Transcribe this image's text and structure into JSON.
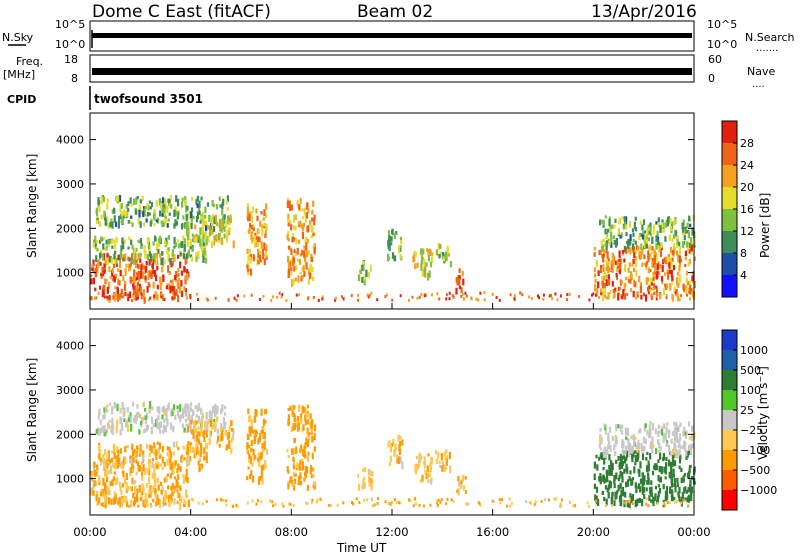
{
  "header": {
    "radar": "Dome C East (fitACF)",
    "beam": "Beam 02",
    "date": "13/Apr/2016"
  },
  "panels": {
    "nsky": {
      "label": "N.Sky",
      "ticks": [
        "10^5",
        "10^0"
      ]
    },
    "nsearch": {
      "label": "N.Search",
      "ticks": [
        "10^5",
        "10^0"
      ],
      "dots": "......."
    },
    "freq": {
      "label_line1": "Freq.",
      "label_line2": "[MHz]",
      "ticks": [
        "18",
        "8"
      ]
    },
    "nave": {
      "label": "Nave",
      "ticks": [
        "60",
        "0"
      ],
      "dots": "...."
    },
    "cpid": {
      "label": "CPID",
      "value": "twofsound 3501"
    }
  },
  "colors": {
    "power": [
      "#1010ff",
      "#1e4fa8",
      "#3d8c5a",
      "#7fc040",
      "#e6dc2a",
      "#f6a020",
      "#f06418",
      "#e02010"
    ],
    "velocity": [
      "#ff0000",
      "#ff5a00",
      "#ff9a00",
      "#ffc850",
      "#c8c8c8",
      "#50c828",
      "#2e7d32",
      "#1f5fa8",
      "#1a3cc8"
    ]
  },
  "chart_data": [
    {
      "type": "heatmap",
      "quantity": "Power",
      "ylabel": "Slant Range [km]",
      "yticks": [
        1000,
        2000,
        3000,
        4000
      ],
      "ylim": [
        180,
        4600
      ],
      "xlim": [
        0,
        24
      ],
      "colorbar": {
        "label": "Power [dB]",
        "ticks": [
          "4",
          "8",
          "12",
          "16",
          "20",
          "24",
          "28"
        ],
        "range": [
          0,
          32
        ]
      },
      "regions": [
        {
          "t0": 0.0,
          "t1": 3.9,
          "r0": 450,
          "r1": 1450,
          "v": 26
        },
        {
          "t0": 0.1,
          "t1": 4.6,
          "r0": 1300,
          "r1": 1850,
          "v": 14
        },
        {
          "t0": 0.2,
          "t1": 5.5,
          "r0": 2100,
          "r1": 2750,
          "v": 13
        },
        {
          "t0": 3.8,
          "t1": 5.7,
          "r0": 1700,
          "r1": 2350,
          "v": 17
        },
        {
          "t0": 6.2,
          "t1": 7.0,
          "r0": 1000,
          "r1": 2600,
          "v": 22
        },
        {
          "t0": 7.8,
          "t1": 8.9,
          "r0": 850,
          "r1": 2700,
          "v": 22
        },
        {
          "t0": 10.6,
          "t1": 11.2,
          "r0": 850,
          "r1": 1300,
          "v": 15
        },
        {
          "t0": 11.8,
          "t1": 12.4,
          "r0": 1350,
          "r1": 2000,
          "v": 14
        },
        {
          "t0": 12.8,
          "t1": 13.6,
          "r0": 950,
          "r1": 1600,
          "v": 18
        },
        {
          "t0": 13.7,
          "t1": 14.3,
          "r0": 1200,
          "r1": 1700,
          "v": 15
        },
        {
          "t0": 14.5,
          "t1": 14.9,
          "r0": 650,
          "r1": 1100,
          "v": 24
        },
        {
          "t0": 20.0,
          "t1": 24.0,
          "r0": 500,
          "r1": 1650,
          "v": 24
        },
        {
          "t0": 20.2,
          "t1": 24.0,
          "r0": 1600,
          "r1": 2300,
          "v": 13
        }
      ]
    },
    {
      "type": "heatmap",
      "quantity": "Velocity",
      "ylabel": "Slant Range [km]",
      "yticks": [
        1000,
        2000,
        3000,
        4000
      ],
      "ylim": [
        180,
        4600
      ],
      "xlim": [
        0,
        24
      ],
      "xticks": [
        "00:00",
        "04:00",
        "08:00",
        "12:00",
        "16:00",
        "20:00",
        "00:00"
      ],
      "xlabel": "Time UT",
      "colorbar": {
        "label": "Velocity [m s^-1]",
        "ticks": [
          "-1000",
          "-500",
          "-100",
          "-25",
          "25",
          "100",
          "500",
          "1000"
        ]
      },
      "regions": [
        {
          "t0": 0.0,
          "t1": 3.9,
          "r0": 450,
          "r1": 1450,
          "v": -100
        },
        {
          "t0": 0.1,
          "t1": 4.6,
          "r0": 1300,
          "r1": 1850,
          "v": -100
        },
        {
          "t0": 0.2,
          "t1": 5.5,
          "r0": 2100,
          "r1": 2750,
          "v": 0
        },
        {
          "t0": 3.8,
          "t1": 5.7,
          "r0": 1700,
          "r1": 2350,
          "v": -80
        },
        {
          "t0": 6.2,
          "t1": 7.0,
          "r0": 1000,
          "r1": 2600,
          "v": -150
        },
        {
          "t0": 7.8,
          "t1": 8.9,
          "r0": 850,
          "r1": 2700,
          "v": -150
        },
        {
          "t0": 10.6,
          "t1": 11.2,
          "r0": 850,
          "r1": 1300,
          "v": -60
        },
        {
          "t0": 11.8,
          "t1": 12.4,
          "r0": 1350,
          "r1": 2000,
          "v": -80
        },
        {
          "t0": 12.8,
          "t1": 13.6,
          "r0": 950,
          "r1": 1600,
          "v": -80
        },
        {
          "t0": 13.7,
          "t1": 14.3,
          "r0": 1200,
          "r1": 1700,
          "v": -60
        },
        {
          "t0": 14.5,
          "t1": 14.9,
          "r0": 650,
          "r1": 1100,
          "v": -100
        },
        {
          "t0": 20.0,
          "t1": 24.0,
          "r0": 500,
          "r1": 1650,
          "v": 300
        },
        {
          "t0": 20.2,
          "t1": 24.0,
          "r0": 1600,
          "r1": 2300,
          "v": 0
        }
      ]
    }
  ]
}
